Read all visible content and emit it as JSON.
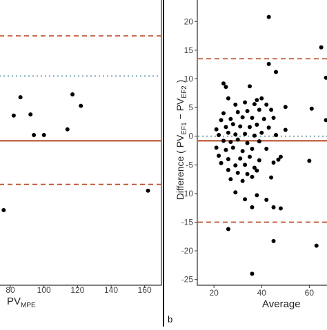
{
  "chart_data": [
    {
      "type": "scatter",
      "panel_label": "",
      "xlabel_main": "PV",
      "xlabel_sub": "MPE",
      "x_ticks": [
        "80",
        "100",
        "120",
        "140",
        "160"
      ],
      "xlim": [
        73,
        170
      ],
      "ylim": [
        -26,
        24
      ],
      "reference_lines": {
        "mean": -0.8,
        "upper_loa": 17.5,
        "lower_loa": -8.4,
        "zero": 10.5
      },
      "points": [
        {
          "x": 82,
          "y": 3.6
        },
        {
          "x": 86,
          "y": 6.8
        },
        {
          "x": 92,
          "y": 3.8
        },
        {
          "x": 94,
          "y": 0.2
        },
        {
          "x": 100,
          "y": 0.2
        },
        {
          "x": 114,
          "y": 1.2
        },
        {
          "x": 117,
          "y": 7.3
        },
        {
          "x": 122,
          "y": 5.3
        },
        {
          "x": 162,
          "y": -9.5
        },
        {
          "x": 76,
          "y": -12.9
        }
      ]
    },
    {
      "type": "scatter",
      "panel_label": "b",
      "xlabel_main": "Average",
      "ylabel_prefix": "Difference ( PV",
      "ylabel_sub1": "EF1",
      "ylabel_mid": " − PV",
      "ylabel_sub2": "EF2",
      "ylabel_suffix": " )",
      "x_ticks": [
        "20",
        "40",
        "60"
      ],
      "y_ticks": [
        "20",
        "15",
        "10",
        "5",
        "0",
        "-5",
        "-10",
        "-15",
        "-20",
        "-25"
      ],
      "xlim": [
        13,
        68
      ],
      "ylim": [
        -26,
        24
      ],
      "reference_lines": {
        "mean": -0.8,
        "upper_loa": 13.5,
        "lower_loa": -15.0,
        "zero": 0.0
      },
      "points": [
        {
          "x": 43,
          "y": 20.8
        },
        {
          "x": 65,
          "y": 15.5
        },
        {
          "x": 43,
          "y": 12.6
        },
        {
          "x": 46,
          "y": 11.2
        },
        {
          "x": 67,
          "y": 10.2
        },
        {
          "x": 24,
          "y": 9.2
        },
        {
          "x": 25,
          "y": 8.6
        },
        {
          "x": 35,
          "y": 8.7
        },
        {
          "x": 26,
          "y": 6.6
        },
        {
          "x": 38,
          "y": 6.3
        },
        {
          "x": 40,
          "y": 6.6
        },
        {
          "x": 29,
          "y": 5.5
        },
        {
          "x": 33,
          "y": 5.9
        },
        {
          "x": 37,
          "y": 5.6
        },
        {
          "x": 42,
          "y": 5.5
        },
        {
          "x": 50,
          "y": 5.1
        },
        {
          "x": 61,
          "y": 4.8
        },
        {
          "x": 24,
          "y": 4.0
        },
        {
          "x": 30,
          "y": 4.2
        },
        {
          "x": 34,
          "y": 4.4
        },
        {
          "x": 39,
          "y": 4.6
        },
        {
          "x": 44,
          "y": 4.6
        },
        {
          "x": 23,
          "y": 2.8
        },
        {
          "x": 27,
          "y": 3.0
        },
        {
          "x": 32,
          "y": 3.3
        },
        {
          "x": 36,
          "y": 3.2
        },
        {
          "x": 41,
          "y": 3.0
        },
        {
          "x": 45,
          "y": 3.2
        },
        {
          "x": 67,
          "y": 2.8
        },
        {
          "x": 21,
          "y": 1.2
        },
        {
          "x": 25,
          "y": 1.6
        },
        {
          "x": 28,
          "y": 2.1
        },
        {
          "x": 31,
          "y": 1.7
        },
        {
          "x": 35,
          "y": 1.6
        },
        {
          "x": 38,
          "y": 2.0
        },
        {
          "x": 43,
          "y": 1.5
        },
        {
          "x": 50,
          "y": 1.1
        },
        {
          "x": 22,
          "y": 0.2
        },
        {
          "x": 26,
          "y": 0.6
        },
        {
          "x": 29,
          "y": 0.3
        },
        {
          "x": 33,
          "y": 0.4
        },
        {
          "x": 37,
          "y": 0.1
        },
        {
          "x": 40,
          "y": 0.6
        },
        {
          "x": 46,
          "y": 0.2
        },
        {
          "x": 24,
          "y": -0.8
        },
        {
          "x": 27,
          "y": -1.0
        },
        {
          "x": 30,
          "y": -0.6
        },
        {
          "x": 34,
          "y": -1.2
        },
        {
          "x": 39,
          "y": -0.9
        },
        {
          "x": 21,
          "y": -2.0
        },
        {
          "x": 25,
          "y": -2.4
        },
        {
          "x": 28,
          "y": -2.0
        },
        {
          "x": 32,
          "y": -2.6
        },
        {
          "x": 36,
          "y": -2.2
        },
        {
          "x": 42,
          "y": -2.2
        },
        {
          "x": 22,
          "y": -3.4
        },
        {
          "x": 26,
          "y": -4.0
        },
        {
          "x": 31,
          "y": -3.9
        },
        {
          "x": 35,
          "y": -3.6
        },
        {
          "x": 39,
          "y": -4.2
        },
        {
          "x": 48,
          "y": -3.6
        },
        {
          "x": 23,
          "y": -4.7
        },
        {
          "x": 29,
          "y": -5.1
        },
        {
          "x": 33,
          "y": -5.0
        },
        {
          "x": 37,
          "y": -5.5
        },
        {
          "x": 45,
          "y": -4.6
        },
        {
          "x": 47,
          "y": -4.1
        },
        {
          "x": 60,
          "y": -4.3
        },
        {
          "x": 26,
          "y": -5.9
        },
        {
          "x": 30,
          "y": -6.4
        },
        {
          "x": 34,
          "y": -6.6
        },
        {
          "x": 38,
          "y": -6.0
        },
        {
          "x": 27,
          "y": -7.5
        },
        {
          "x": 32,
          "y": -7.8
        },
        {
          "x": 36,
          "y": -7.1
        },
        {
          "x": 44,
          "y": -7.2
        },
        {
          "x": 29,
          "y": -9.8
        },
        {
          "x": 33,
          "y": -11.0
        },
        {
          "x": 38,
          "y": -10.3
        },
        {
          "x": 42,
          "y": -11.1
        },
        {
          "x": 36,
          "y": -12.4
        },
        {
          "x": 45,
          "y": -12.4
        },
        {
          "x": 48,
          "y": -12.6
        },
        {
          "x": 26,
          "y": -16.2
        },
        {
          "x": 45,
          "y": -18.3
        },
        {
          "x": 36,
          "y": -24.0
        },
        {
          "x": 63,
          "y": -19.1
        }
      ]
    }
  ]
}
